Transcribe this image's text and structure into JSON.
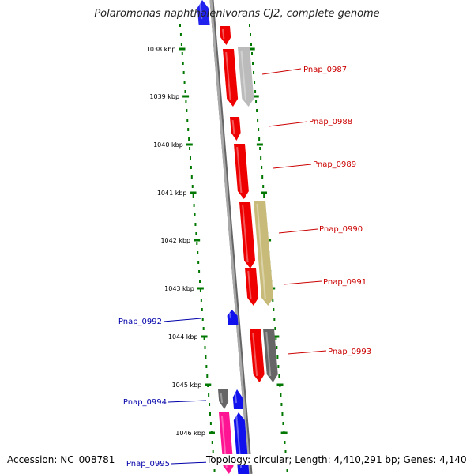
{
  "title": "Polaromonas naphthalenivorans CJ2, complete genome",
  "footer": {
    "accession": "Accession: NC_008781",
    "summary": "Topology: circular; Length: 4,410,291 bp; Genes: 4,140"
  },
  "colors": {
    "forward_label": "#cc0000",
    "reverse_label": "#0000aa",
    "ruler": "#007700",
    "backbone": "#808080"
  },
  "ticks": [
    {
      "label": "1038 kbp"
    },
    {
      "label": "1039 kbp"
    },
    {
      "label": "1040 kbp"
    },
    {
      "label": "1041 kbp"
    },
    {
      "label": "1042 kbp"
    },
    {
      "label": "1043 kbp"
    },
    {
      "label": "1044 kbp"
    },
    {
      "label": "1045 kbp"
    },
    {
      "label": "1046 kbp"
    }
  ],
  "genes": [
    {
      "name": "Pnap_0987",
      "strand": "forward"
    },
    {
      "name": "Pnap_0988",
      "strand": "forward"
    },
    {
      "name": "Pnap_0989",
      "strand": "forward"
    },
    {
      "name": "Pnap_0990",
      "strand": "forward"
    },
    {
      "name": "Pnap_0991",
      "strand": "forward"
    },
    {
      "name": "Pnap_0992",
      "strand": "reverse"
    },
    {
      "name": "Pnap_0993",
      "strand": "forward"
    },
    {
      "name": "Pnap_0994",
      "strand": "reverse"
    },
    {
      "name": "Pnap_0995",
      "strand": "reverse"
    }
  ]
}
